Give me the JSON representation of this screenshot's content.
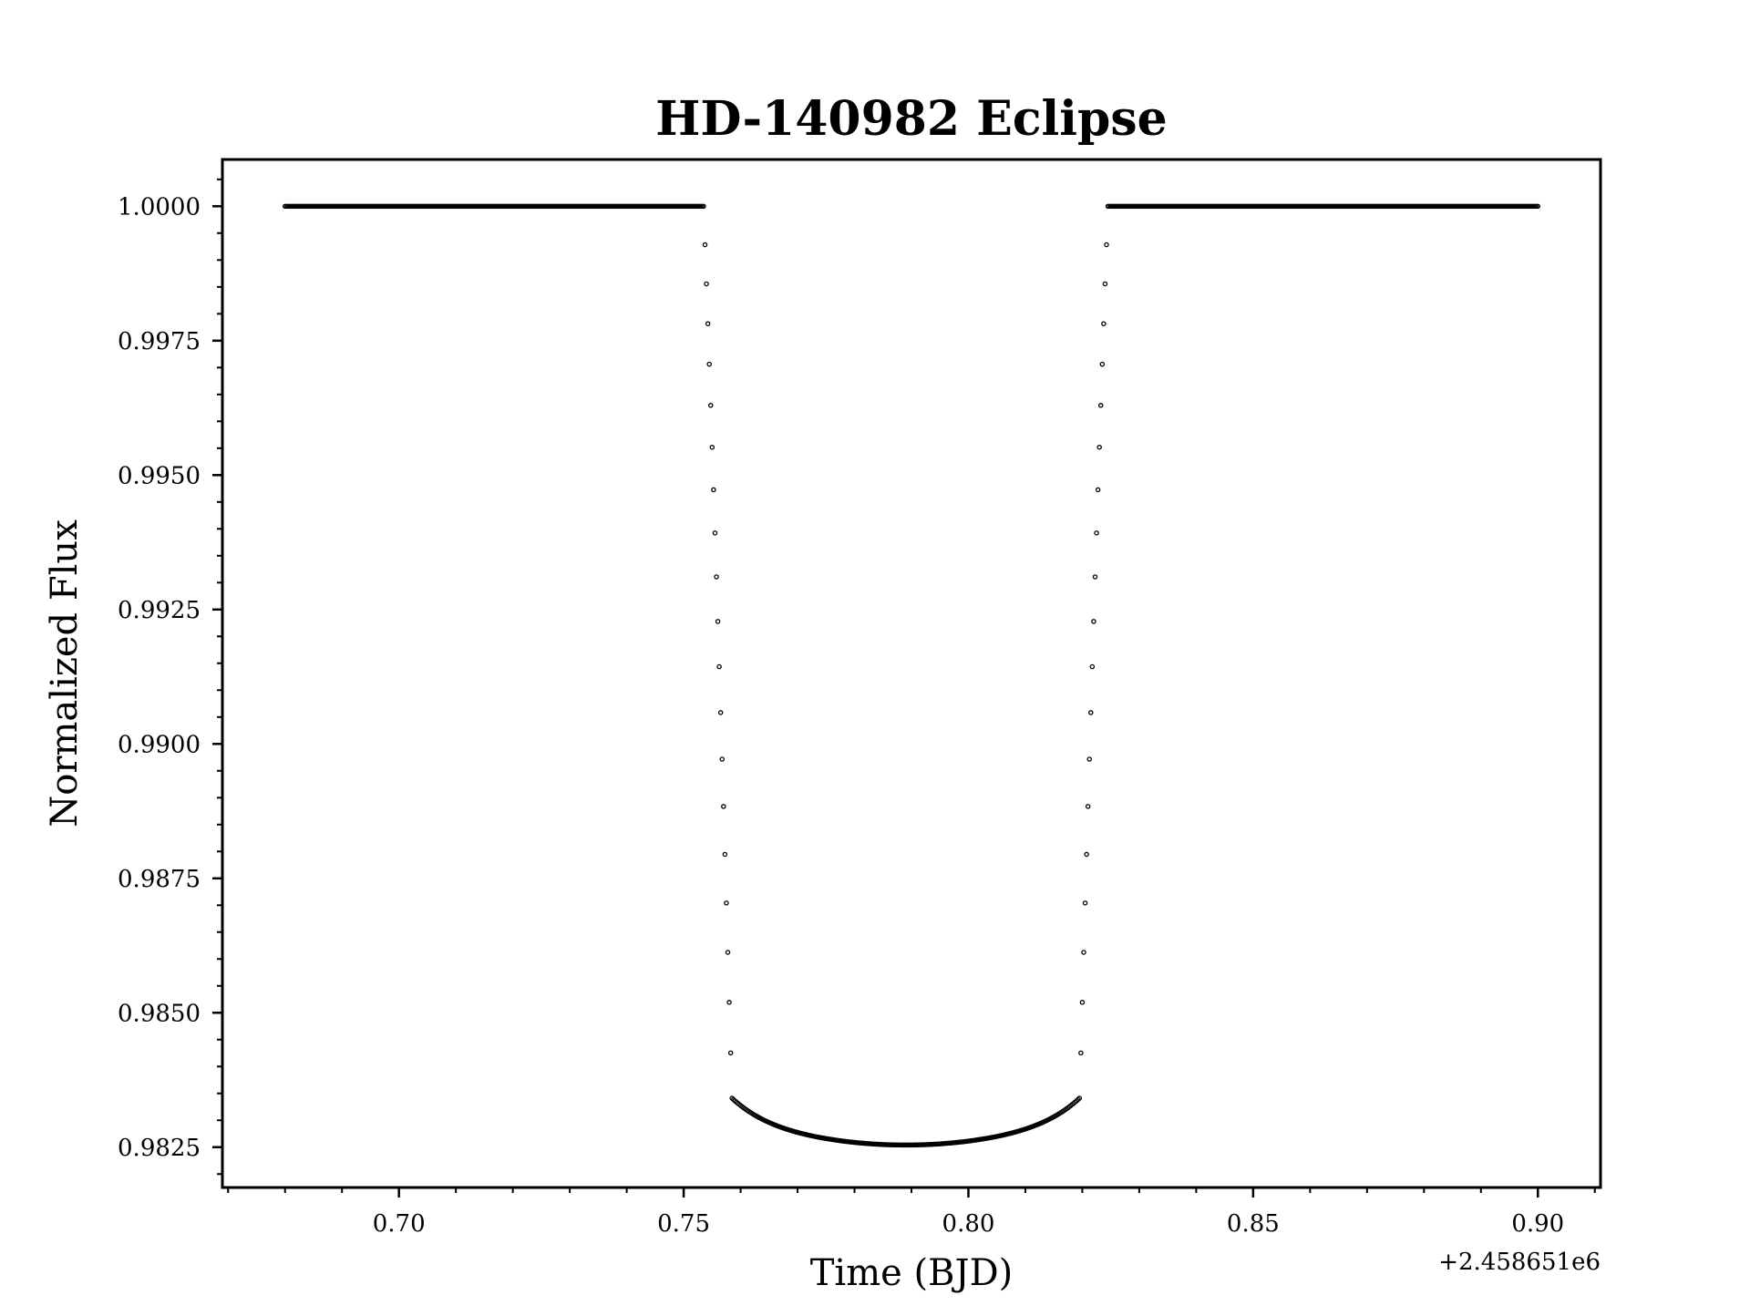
{
  "chart_data": {
    "type": "scatter",
    "title": "HD-140982 Eclipse",
    "xlabel": "Time (BJD)",
    "ylabel": "Normalized Flux",
    "x_offset_label": "+2.458651e6",
    "x_offset_value": 2458651,
    "xlim": [
      0.669,
      0.911
    ],
    "ylim": [
      0.98175,
      1.00087
    ],
    "x_ticks": [
      0.7,
      0.75,
      0.8,
      0.85,
      0.9
    ],
    "x_tick_labels": [
      "0.70",
      "0.75",
      "0.80",
      "0.85",
      "0.90"
    ],
    "x_minor_step": 0.01,
    "y_ticks": [
      0.9825,
      0.985,
      0.9875,
      0.99,
      0.9925,
      0.995,
      0.9975,
      1.0
    ],
    "y_tick_labels": [
      "0.9825",
      "0.9850",
      "0.9875",
      "0.9900",
      "0.9925",
      "0.9950",
      "0.9975",
      "1.0000"
    ],
    "y_minor_step": 0.0005,
    "grid": false,
    "legend": "none",
    "marker": "hollow-circle",
    "marker_color": "#000000",
    "series": [
      {
        "x_start": 0.68,
        "x_end": 0.9,
        "x_step": 0.00025,
        "transit_center": 0.789,
        "ingress_start": 0.7535,
        "egress_end": 0.8245,
        "flux_min": 0.98254,
        "flux_out_of_transit": 1.0
      }
    ]
  }
}
